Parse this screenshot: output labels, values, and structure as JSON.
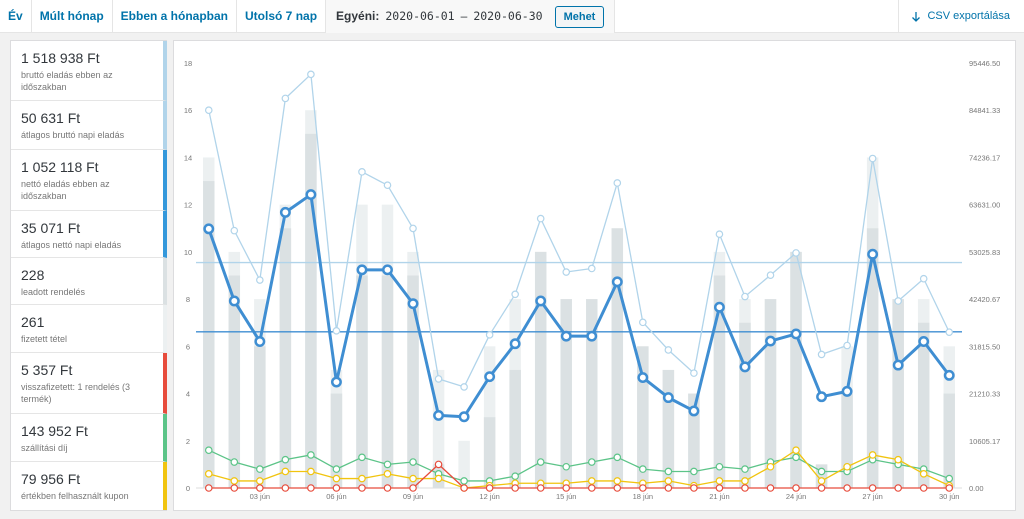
{
  "toolbar": {
    "tabs": [
      "Év",
      "Múlt hónap",
      "Ebben a hónapban",
      "Utolsó 7 nap"
    ],
    "custom_label": "Egyéni:",
    "date_from": "2020-06-01",
    "date_sep": "–",
    "date_to": "2020-06-30",
    "go_label": "Mehet",
    "export_label": "CSV exportálása"
  },
  "legend": [
    {
      "amount": "1 518 938 Ft",
      "desc": "bruttó eladás ebben az időszakban",
      "color": "#b1d4ea"
    },
    {
      "amount": "50 631 Ft",
      "desc": "átlagos bruttó napi eladás",
      "color": "#b1d4ea"
    },
    {
      "amount": "1 052 118 Ft",
      "desc": "nettó eladás ebben az időszakban",
      "color": "#3498db"
    },
    {
      "amount": "35 071 Ft",
      "desc": "átlagos nettó napi eladás",
      "color": "#3498db"
    },
    {
      "amount": "228",
      "desc": "leadott rendelés",
      "color": "#dbe1e3"
    },
    {
      "amount": "261",
      "desc": "fizetett tétel",
      "color": "#ecf0f1"
    },
    {
      "amount": "5 357 Ft",
      "desc": "visszafizetett: 1 rendelés (3 termék)",
      "color": "#e74c3c"
    },
    {
      "amount": "143 952 Ft",
      "desc": "szállítási díj",
      "color": "#5cc488"
    },
    {
      "amount": "79 956 Ft",
      "desc": "értékben felhasznált kupon",
      "color": "#f1c40f"
    }
  ],
  "chart_data": {
    "type": "bar",
    "days": [
      1,
      2,
      3,
      4,
      5,
      6,
      7,
      8,
      9,
      10,
      11,
      12,
      13,
      14,
      15,
      16,
      17,
      18,
      19,
      20,
      21,
      22,
      23,
      24,
      25,
      26,
      27,
      28,
      29,
      30
    ],
    "x_ticks": [
      "03 jún",
      "06 jún",
      "09 jún",
      "12 jún",
      "15 jún",
      "18 jún",
      "21 jún",
      "24 jún",
      "27 jún",
      "30 jún"
    ],
    "y_left": {
      "min": 0,
      "max": 18,
      "ticks": [
        0,
        2,
        4,
        6,
        8,
        10,
        12,
        14,
        16,
        18
      ]
    },
    "y_right": {
      "min": 0,
      "max": 95446.5,
      "ticks": [
        "0.00",
        "10605.17",
        "21210.33",
        "31815.50",
        "42420.67",
        "53025.83",
        "63631.00",
        "74236.17",
        "84841.33",
        "95446.50"
      ]
    },
    "series": [
      {
        "name": "leadott rendelés",
        "kind": "bar",
        "axis": "left",
        "color": "#dbe1e3",
        "values": [
          13,
          9,
          6,
          11,
          15,
          4,
          9,
          9,
          9,
          1,
          0,
          3,
          5,
          10,
          8,
          8,
          11,
          6,
          5,
          4,
          9,
          7,
          8,
          10,
          1,
          4,
          11,
          8,
          7,
          4
        ]
      },
      {
        "name": "fizetett tétel",
        "kind": "bar",
        "axis": "left",
        "color": "#ecf0f1",
        "values": [
          14,
          10,
          8,
          12,
          16,
          5,
          12,
          12,
          10,
          5,
          2,
          6,
          8,
          10,
          8,
          8,
          11,
          6,
          5,
          4,
          10,
          8,
          8,
          10,
          1,
          6,
          14,
          8,
          8,
          6
        ]
      },
      {
        "name": "bruttó eladás",
        "kind": "line",
        "axis": "right",
        "color": "#b1d4ea",
        "width": 1.3,
        "values": [
          84841,
          57800,
          46700,
          87500,
          92900,
          35300,
          71000,
          68000,
          58300,
          24500,
          22700,
          34400,
          43500,
          60500,
          48500,
          49300,
          68500,
          37200,
          31000,
          25800,
          57000,
          43000,
          47800,
          52800,
          30000,
          32000,
          74000,
          42000,
          47000,
          35000
        ]
      },
      {
        "name": "nettó eladás",
        "kind": "line",
        "axis": "right",
        "color": "#3f8ed2",
        "width": 3,
        "values": [
          58200,
          42000,
          32900,
          61900,
          65900,
          23800,
          49000,
          49000,
          41400,
          16300,
          16000,
          25000,
          32400,
          42000,
          34100,
          34100,
          46300,
          24800,
          20300,
          17300,
          40600,
          27200,
          33000,
          34600,
          20500,
          21700,
          52500,
          27600,
          32900,
          25300
        ]
      },
      {
        "name": "szállítási díj",
        "kind": "line",
        "axis": "left",
        "color": "#5cc488",
        "width": 1.3,
        "values": [
          1.6,
          1.1,
          0.8,
          1.2,
          1.4,
          0.8,
          1.3,
          1.0,
          1.1,
          0.6,
          0.3,
          0.3,
          0.5,
          1.1,
          0.9,
          1.1,
          1.3,
          0.8,
          0.7,
          0.7,
          0.9,
          0.8,
          1.1,
          1.3,
          0.7,
          0.7,
          1.2,
          1.0,
          0.8,
          0.4
        ]
      },
      {
        "name": "kupon",
        "kind": "line",
        "axis": "left",
        "color": "#f1c40f",
        "width": 1.3,
        "values": [
          0.6,
          0.3,
          0.3,
          0.7,
          0.7,
          0.4,
          0.4,
          0.6,
          0.4,
          0.4,
          0.0,
          0.1,
          0.2,
          0.2,
          0.2,
          0.3,
          0.3,
          0.2,
          0.3,
          0.1,
          0.3,
          0.3,
          0.9,
          1.6,
          0.3,
          0.9,
          1.4,
          1.2,
          0.6,
          0.1
        ]
      },
      {
        "name": "visszafizetett",
        "kind": "line",
        "axis": "left",
        "color": "#e74c3c",
        "width": 1.3,
        "values": [
          0,
          0,
          0,
          0,
          0,
          0,
          0,
          0,
          0,
          1.0,
          0,
          0,
          0,
          0,
          0,
          0,
          0,
          0,
          0,
          0,
          0,
          0,
          0,
          0,
          0,
          0,
          0,
          0,
          0,
          0
        ]
      }
    ],
    "avg_lines": [
      {
        "name": "átlagos bruttó napi eladás",
        "value": 50631,
        "axis": "right",
        "color": "#b1d4ea"
      },
      {
        "name": "átlagos nettó napi eladás",
        "value": 35071,
        "axis": "right",
        "color": "#3f8ed2"
      }
    ]
  }
}
